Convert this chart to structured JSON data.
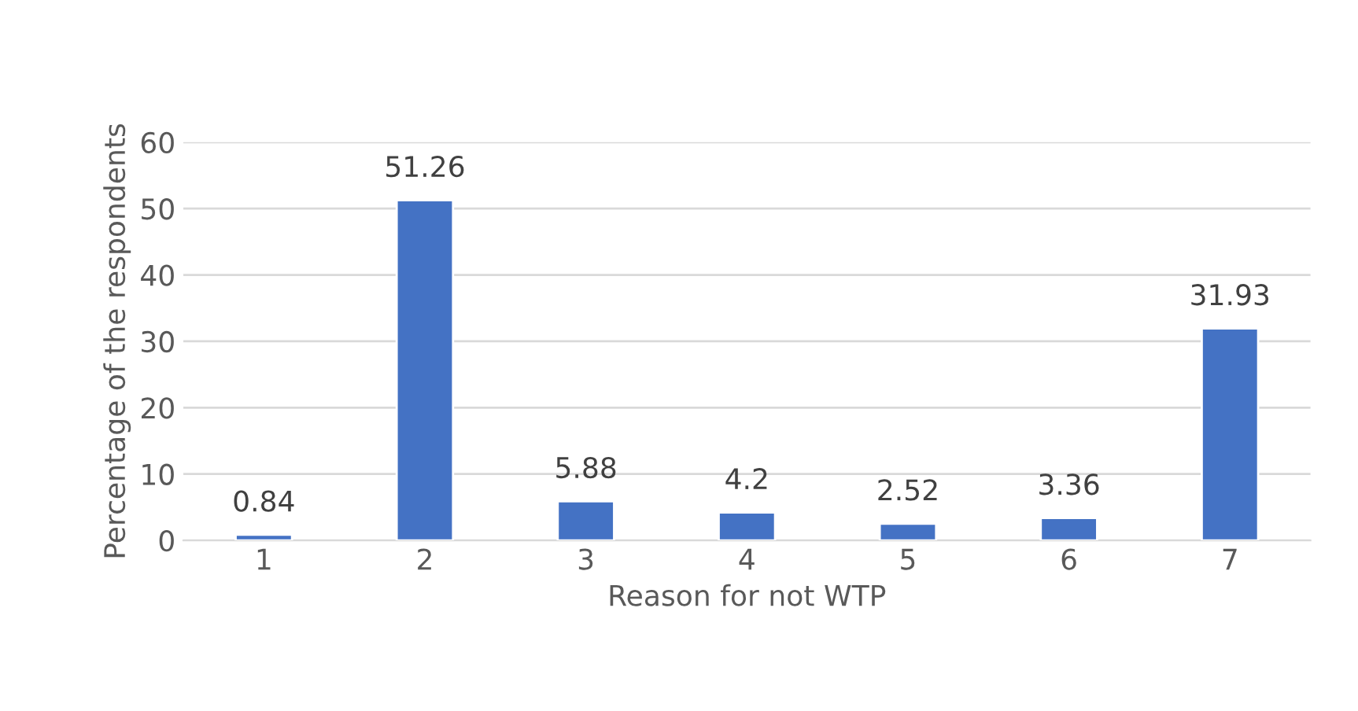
{
  "chart_data": {
    "type": "bar",
    "xlabel": "Reason for not WTP",
    "ylabel": "Percentage of the respondents",
    "categories": [
      "1",
      "2",
      "3",
      "4",
      "5",
      "6",
      "7"
    ],
    "values": [
      0.84,
      51.26,
      5.88,
      4.2,
      2.52,
      3.36,
      31.93
    ],
    "color": "#4472c4",
    "ylim": [
      0,
      60
    ],
    "yticks": [
      0,
      10,
      20,
      30,
      40,
      50,
      60
    ],
    "grid": "y",
    "data_labels": true
  }
}
